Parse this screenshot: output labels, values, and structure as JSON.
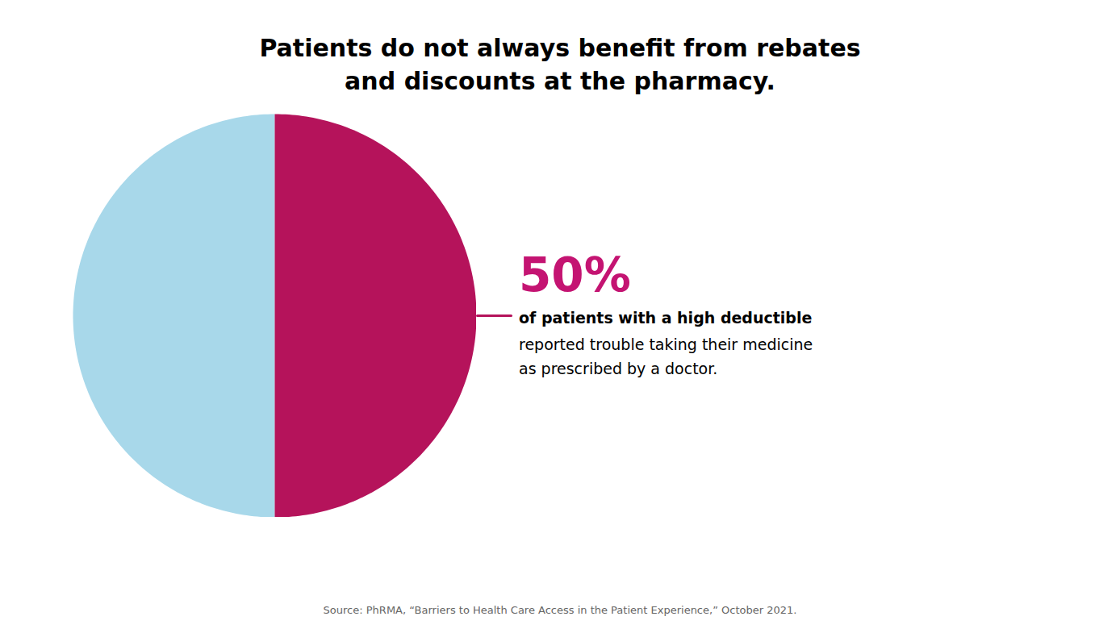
{
  "chart_data": {
    "type": "pie",
    "title": "Patients do not always benefit from rebates\nand discounts at the pharmacy.",
    "values": [
      50,
      50
    ],
    "colors": [
      "#a8d8ea",
      "#b5135b"
    ],
    "annotations": [
      {
        "text": "50%",
        "color": "#c41472"
      },
      {
        "text": "of patients with a high deductible"
      },
      {
        "text": "reported trouble taking their medicine\nas prescribed by a doctor."
      }
    ],
    "caption": "Source: PhRMA, “Barriers to Health Care Access in the Patient Experience,” October 2021."
  }
}
